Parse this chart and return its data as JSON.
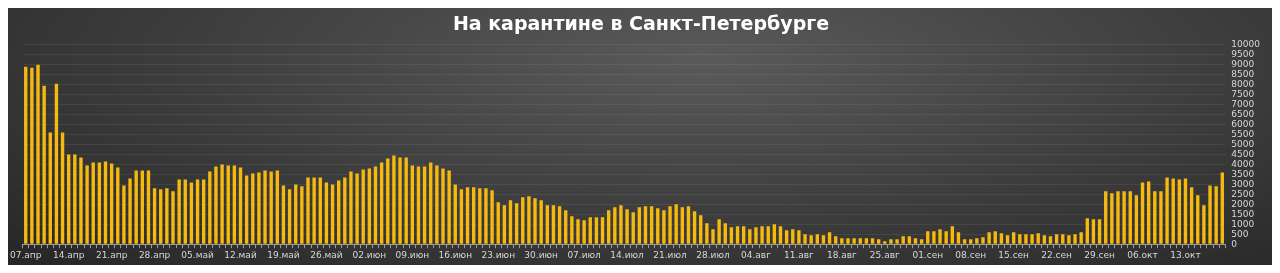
{
  "chart_data": {
    "type": "bar",
    "title": "На карантине в Санкт-Петербурге",
    "categories": [
      "07.апр",
      null,
      null,
      null,
      null,
      null,
      null,
      "14.апр",
      null,
      null,
      null,
      null,
      null,
      null,
      "21.апр",
      null,
      null,
      null,
      null,
      null,
      null,
      "28.апр",
      null,
      null,
      null,
      null,
      null,
      null,
      "05.май",
      null,
      null,
      null,
      null,
      null,
      null,
      "12.май",
      null,
      null,
      null,
      null,
      null,
      null,
      "19.май",
      null,
      null,
      null,
      null,
      null,
      null,
      "26.май",
      null,
      null,
      null,
      null,
      null,
      null,
      "02.июн",
      null,
      null,
      null,
      null,
      null,
      null,
      "09.июн",
      null,
      null,
      null,
      null,
      null,
      null,
      "16.июн",
      null,
      null,
      null,
      null,
      null,
      null,
      "23.июн",
      null,
      null,
      null,
      null,
      null,
      null,
      "30.июн",
      null,
      null,
      null,
      null,
      null,
      null,
      "07.июл",
      null,
      null,
      null,
      null,
      null,
      null,
      "14.июл",
      null,
      null,
      null,
      null,
      null,
      null,
      "21.июл",
      null,
      null,
      null,
      null,
      null,
      null,
      "28.июл",
      null,
      null,
      null,
      null,
      null,
      null,
      "04.авг",
      null,
      null,
      null,
      null,
      null,
      null,
      "11.авг",
      null,
      null,
      null,
      null,
      null,
      null,
      "18.авг",
      null,
      null,
      null,
      null,
      null,
      null,
      "25.авг",
      null,
      null,
      null,
      null,
      null,
      null,
      "01.сен",
      null,
      null,
      null,
      null,
      null,
      null,
      "08.сен",
      null,
      null,
      null,
      null,
      null,
      null,
      "15.сен",
      null,
      null,
      null,
      null,
      null,
      null,
      "22.сен",
      null,
      null,
      null,
      null,
      null,
      null,
      "29.сен",
      null,
      null,
      null,
      null,
      null,
      null,
      "06.окт",
      null,
      null,
      null,
      null,
      null,
      null,
      "13.окт",
      null,
      null,
      null,
      null,
      null,
      null
    ],
    "values": [
      8900,
      8850,
      9000,
      7950,
      5600,
      8050,
      5600,
      4500,
      4500,
      4350,
      3950,
      4100,
      4100,
      4150,
      4050,
      3850,
      2950,
      3300,
      3700,
      3700,
      3700,
      2800,
      2750,
      2800,
      2650,
      3250,
      3250,
      3100,
      3250,
      3250,
      3650,
      3900,
      4000,
      3950,
      3950,
      3850,
      3450,
      3550,
      3600,
      3700,
      3650,
      3700,
      2950,
      2750,
      3000,
      2900,
      3350,
      3350,
      3350,
      3100,
      3000,
      3200,
      3350,
      3650,
      3550,
      3750,
      3800,
      3900,
      4100,
      4300,
      4450,
      4350,
      4350,
      3950,
      3900,
      3900,
      4100,
      3950,
      3800,
      3700,
      3000,
      2750,
      2850,
      2850,
      2800,
      2800,
      2700,
      2100,
      1950,
      2200,
      2050,
      2350,
      2400,
      2300,
      2200,
      1950,
      1950,
      1900,
      1700,
      1400,
      1250,
      1200,
      1350,
      1350,
      1350,
      1700,
      1850,
      1950,
      1750,
      1600,
      1850,
      1900,
      1900,
      1800,
      1700,
      1900,
      2000,
      1850,
      1900,
      1650,
      1450,
      1050,
      750,
      1250,
      1050,
      850,
      900,
      900,
      750,
      850,
      900,
      900,
      1000,
      900,
      700,
      750,
      700,
      500,
      450,
      500,
      450,
      600,
      400,
      300,
      300,
      300,
      300,
      300,
      300,
      250,
      150,
      250,
      250,
      400,
      400,
      300,
      250,
      650,
      650,
      750,
      650,
      900,
      600,
      250,
      250,
      300,
      350,
      600,
      650,
      550,
      450,
      600,
      500,
      500,
      500,
      550,
      450,
      400,
      500,
      500,
      450,
      500,
      600,
      1300,
      1250,
      1250,
      2650,
      2550,
      2650,
      2650,
      2650,
      2450,
      3100,
      3150,
      2650,
      2650,
      3350,
      3300,
      3250,
      3300,
      2850,
      2450,
      1950,
      2950,
      2900,
      3600
    ],
    "color": "#f5b90f",
    "ylim": [
      0,
      10000
    ],
    "yticks": [
      0,
      500,
      1000,
      1500,
      2000,
      2500,
      3000,
      3500,
      4000,
      4500,
      5000,
      5500,
      6000,
      6500,
      7000,
      7500,
      8000,
      8500,
      9000,
      9500,
      10000
    ],
    "grid": "y"
  }
}
